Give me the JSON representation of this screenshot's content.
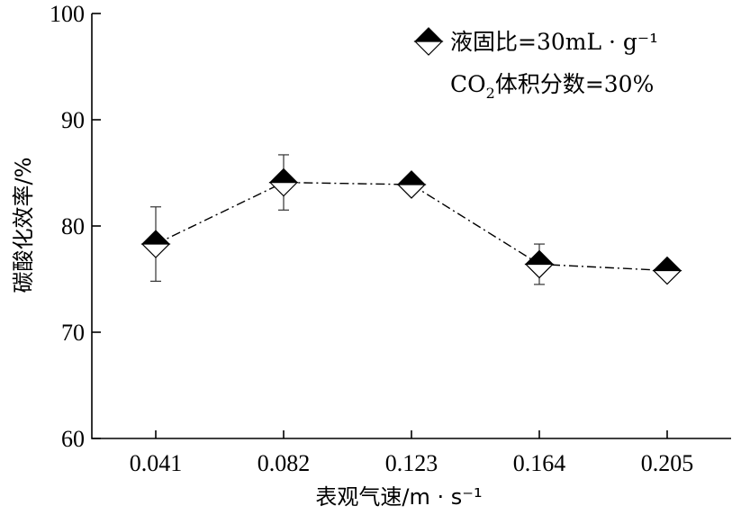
{
  "chart_data": {
    "type": "line",
    "xlabel": "表观气速/m · s⁻¹",
    "ylabel": "碳酸化效率/%",
    "categories": [
      "0.041",
      "0.082",
      "0.123",
      "0.164",
      "0.205"
    ],
    "ylim": [
      60,
      100
    ],
    "yticks": [
      "60",
      "70",
      "80",
      "90",
      "100"
    ],
    "series": [
      {
        "values": [
          78.3,
          84.1,
          83.9,
          76.4,
          75.8
        ],
        "err": [
          3.5,
          2.6,
          0.3,
          1.9,
          0.4
        ],
        "marker": "half-filled-diamond"
      }
    ],
    "legend": {
      "position": "top-right",
      "entry": "液固比=30mL · g⁻¹",
      "note_pre": "CO",
      "note_sub": "2",
      "note_post": "体积分数=30%"
    },
    "grid": false
  }
}
